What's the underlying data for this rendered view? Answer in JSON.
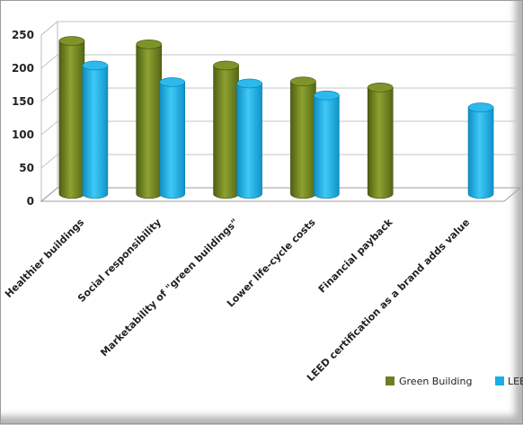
{
  "chart_data": {
    "type": "bar",
    "title": "",
    "xlabel": "",
    "ylabel": "",
    "categories": [
      "Healthier buildings",
      "Social responsibility",
      "Marketability of \"green buildings\"",
      "Lower life-cycle costs",
      "Financial payback",
      "LEED certification as a brand adds value"
    ],
    "series": [
      {
        "name": "Green Building",
        "color": "#6b7f1f",
        "values": [
          230,
          225,
          193,
          169,
          160,
          null
        ]
      },
      {
        "name": "LEE",
        "color": "#1aaee6",
        "values": [
          193,
          168,
          166,
          148,
          null,
          130
        ]
      }
    ],
    "ylim": [
      0,
      250
    ],
    "yticks": [
      "0",
      "50",
      "100",
      "150",
      "200",
      "250"
    ],
    "grid": true,
    "legend_position": "bottom-right"
  }
}
